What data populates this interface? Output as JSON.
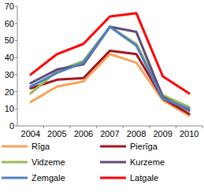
{
  "chart_data": {
    "type": "line",
    "categories": [
      "2004",
      "2005",
      "2006",
      "2007",
      "2008",
      "2009",
      "2010"
    ],
    "series": [
      {
        "name": "Rīga",
        "color": "#f7a35c",
        "values": [
          14,
          23,
          26,
          42,
          37,
          15,
          6
        ]
      },
      {
        "name": "Pierīga",
        "color": "#a3161f",
        "values": [
          22,
          27,
          28,
          44,
          42,
          16,
          7
        ]
      },
      {
        "name": "Vidzeme",
        "color": "#9bbb59",
        "values": [
          19,
          32,
          38,
          58,
          48,
          18,
          11
        ]
      },
      {
        "name": "Kurzeme",
        "color": "#604a7b",
        "values": [
          25,
          33,
          36,
          58,
          55,
          17,
          9
        ]
      },
      {
        "name": "Zemgale",
        "color": "#4f81bd",
        "values": [
          23,
          31,
          37,
          58,
          47,
          16,
          10
        ]
      },
      {
        "name": "Latgale",
        "color": "#ff0000",
        "values": [
          30,
          42,
          48,
          64,
          66,
          29,
          19
        ]
      }
    ],
    "ylim": [
      0,
      70
    ],
    "yticks": [
      0,
      10,
      20,
      30,
      40,
      50,
      60,
      70
    ],
    "grid": false,
    "legend": "bottom"
  }
}
